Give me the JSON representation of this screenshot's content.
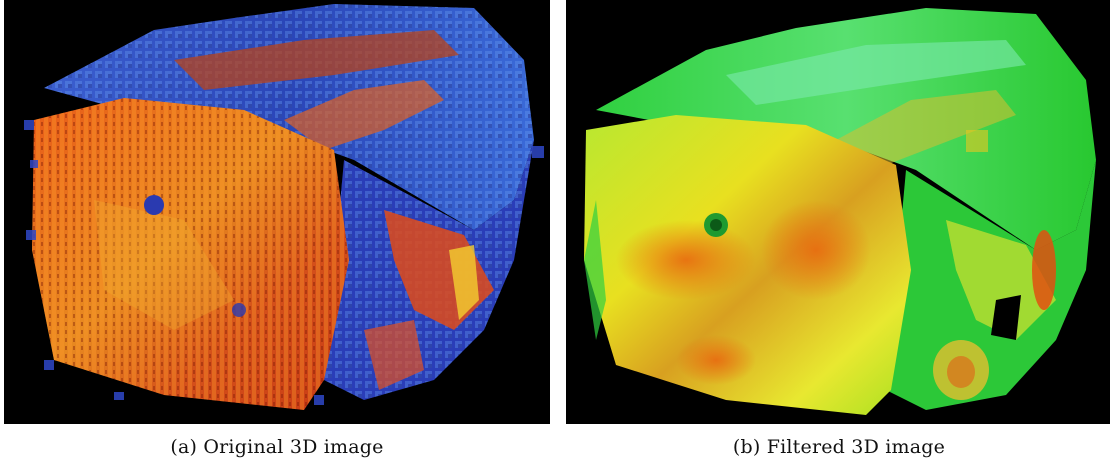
{
  "figure": {
    "panels": [
      {
        "id": "a",
        "caption": "(a) Original 3D image",
        "colors": {
          "face": "#e4571a",
          "face_hot": "#f0c020",
          "side": "#2a43c8",
          "side_light": "#5b8fd8",
          "background": "#000000"
        }
      },
      {
        "id": "b",
        "caption": "(b) Filtered 3D image",
        "colors": {
          "face": "#c8e820",
          "face_hot": "#f07a10",
          "side": "#28c828",
          "side_light": "#7ee8a0",
          "background": "#000000"
        }
      }
    ]
  }
}
